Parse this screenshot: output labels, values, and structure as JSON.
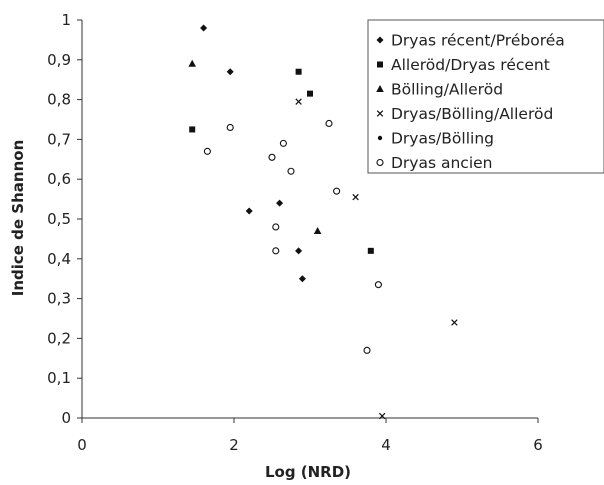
{
  "chart_data": {
    "type": "scatter",
    "title": "",
    "xlabel": "Log (NRD)",
    "ylabel": "Indice de Shannon",
    "xlim": [
      0,
      6
    ],
    "ylim": [
      0,
      1
    ],
    "x_ticks": [
      "0",
      "2",
      "4",
      "6"
    ],
    "y_ticks": [
      "0",
      "0,1",
      "0,2",
      "0,3",
      "0,4",
      "0,5",
      "0,6",
      "0,7",
      "0,8",
      "0,9",
      "1"
    ],
    "grid": false,
    "legend_position": "top-right",
    "series": [
      {
        "name": "Dryas récent/Préboréa",
        "marker": "diamond",
        "color": "#111111",
        "points": [
          [
            1.6,
            0.98
          ],
          [
            1.95,
            0.87
          ],
          [
            2.2,
            0.52
          ],
          [
            2.6,
            0.54
          ],
          [
            2.85,
            0.42
          ],
          [
            2.9,
            0.35
          ]
        ]
      },
      {
        "name": "Alleröd/Dryas récent",
        "marker": "square",
        "color": "#111111",
        "points": [
          [
            1.45,
            0.725
          ],
          [
            2.85,
            0.87
          ],
          [
            3.0,
            0.815
          ],
          [
            3.8,
            0.42
          ]
        ]
      },
      {
        "name": "Bölling/Alleröd",
        "marker": "triangle",
        "color": "#111111",
        "points": [
          [
            1.45,
            0.89
          ],
          [
            3.1,
            0.47
          ]
        ]
      },
      {
        "name": "Dryas/Bölling/Alleröd",
        "marker": "cross",
        "color": "#111111",
        "points": [
          [
            2.85,
            0.795
          ],
          [
            3.6,
            0.555
          ],
          [
            4.9,
            0.24
          ],
          [
            3.95,
            0.005
          ]
        ]
      },
      {
        "name": "Dryas/Bölling",
        "marker": "dot",
        "color": "#111111",
        "points": []
      },
      {
        "name": "Dryas ancien",
        "marker": "circle",
        "color": "#111111",
        "points": [
          [
            1.65,
            0.67
          ],
          [
            1.95,
            0.73
          ],
          [
            2.5,
            0.655
          ],
          [
            2.65,
            0.69
          ],
          [
            2.75,
            0.62
          ],
          [
            3.25,
            0.74
          ],
          [
            3.35,
            0.57
          ],
          [
            2.55,
            0.48
          ],
          [
            2.55,
            0.42
          ],
          [
            3.9,
            0.335
          ],
          [
            3.75,
            0.17
          ]
        ]
      }
    ]
  }
}
